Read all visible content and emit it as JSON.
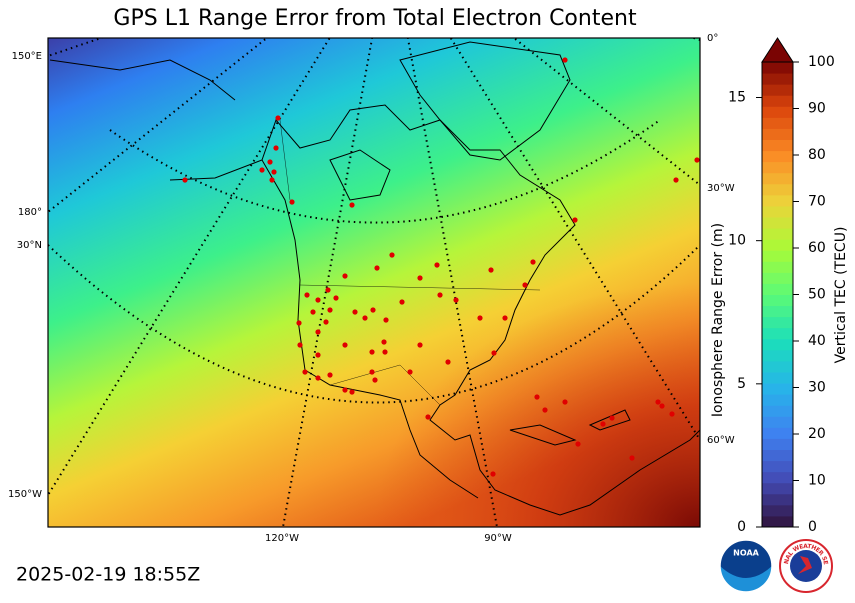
{
  "header": {
    "title": "GPS L1 Range Error from Total Electron Content",
    "timestamp": "2025-02-19 18:55Z"
  },
  "map": {
    "graticule_labels": [
      "150°E",
      "180°",
      "30°N",
      "150°W",
      "0°",
      "30°W",
      "60°W",
      "120°W",
      "90°W"
    ]
  },
  "colorbar": {
    "left_axis": {
      "label": "Ionosphere Range Error (m)",
      "ylim": [
        0,
        16.24
      ],
      "yticks": [
        0,
        5,
        10,
        15
      ]
    },
    "right_axis": {
      "label": "Vertical TEC (TECU)",
      "ylim": [
        0,
        100
      ],
      "yticks": [
        0,
        10,
        20,
        30,
        40,
        50,
        60,
        70,
        80,
        90,
        100
      ]
    }
  },
  "logos": {
    "noaa": "NOAA",
    "nws": "NATIONAL WEATHER SERVICE"
  }
}
